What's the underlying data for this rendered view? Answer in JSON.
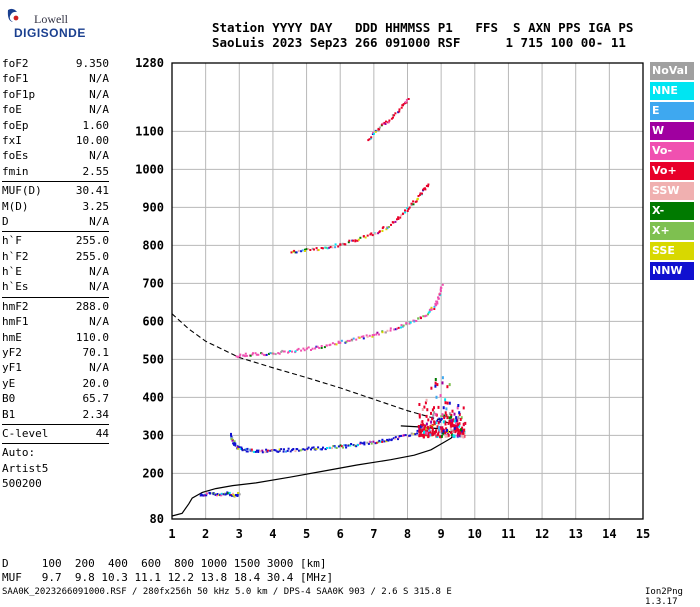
{
  "logo": {
    "line1": "Lowell",
    "line2": "DIGISONDE"
  },
  "header": {
    "line1": "Station YYYY DAY   DDD HHMMSS P1   FFS  S AXN PPS IGA PS",
    "line2": "SaoLuis 2023 Sep23 266 091000 RSF      1 715 100 00- 11"
  },
  "params_groups": [
    [
      [
        "foF2",
        "9.350"
      ],
      [
        "foF1",
        "N/A"
      ],
      [
        "foF1p",
        "N/A"
      ],
      [
        "foE",
        "N/A"
      ],
      [
        "foEp",
        "1.60"
      ],
      [
        "fxI",
        "10.00"
      ],
      [
        "foEs",
        "N/A"
      ],
      [
        "fmin",
        "2.55"
      ]
    ],
    [
      [
        "MUF(D)",
        "30.41"
      ],
      [
        "M(D)",
        "3.25"
      ],
      [
        "D",
        "N/A"
      ]
    ],
    [
      [
        "h`F",
        "255.0"
      ],
      [
        "h`F2",
        "255.0"
      ],
      [
        "h`E",
        "N/A"
      ],
      [
        "h`Es",
        "N/A"
      ]
    ],
    [
      [
        "hmF2",
        "288.0"
      ],
      [
        "hmF1",
        "N/A"
      ],
      [
        "hmE",
        "110.0"
      ],
      [
        "yF2",
        "70.1"
      ],
      [
        "yF1",
        "N/A"
      ],
      [
        "yE",
        "20.0"
      ],
      [
        "B0",
        "65.7"
      ],
      [
        "B1",
        "2.34"
      ]
    ],
    [
      [
        "C-level",
        "44"
      ]
    ]
  ],
  "autoscaling": {
    "line1": "Auto:",
    "line2": "Artist5",
    "line3": "500200"
  },
  "legend": [
    {
      "label": "NoVal",
      "color": "#a0a0a0"
    },
    {
      "label": "NNE",
      "color": "#00e5f2"
    },
    {
      "label": "E",
      "color": "#3ea8f0"
    },
    {
      "label": "W",
      "color": "#a000a0"
    },
    {
      "label": "Vo-",
      "color": "#f050b0"
    },
    {
      "label": "Vo+",
      "color": "#e8002a"
    },
    {
      "label": "SSW",
      "color": "#f0b0b0"
    },
    {
      "label": "X-",
      "color": "#007a00"
    },
    {
      "label": "X+",
      "color": "#7ec050"
    },
    {
      "label": "SSE",
      "color": "#d8d800"
    },
    {
      "label": "NNW",
      "color": "#1010d0"
    }
  ],
  "footer": {
    "d_row": "D     100  200  400  600  800 1000 1500 3000 [km]",
    "muf_row": "MUF   9.7  9.8 10.3 11.1 12.2 13.8 18.4 30.4 [MHz]",
    "file_line": "SAA0K_2023266091000.RSF / 280fx256h 50 kHz 5.0 km / DPS-4 SAA0K 903 / 2.6 S 315.8 E",
    "version": "Ion2Png 1.3.17"
  },
  "chart_data": {
    "type": "scatter",
    "xlim": [
      1,
      15
    ],
    "ylim": [
      80,
      1280
    ],
    "xticks": [
      1,
      2,
      3,
      4,
      5,
      6,
      7,
      8,
      9,
      10,
      11,
      12,
      13,
      14,
      15
    ],
    "yticks": [
      80,
      200,
      300,
      400,
      500,
      600,
      700,
      800,
      900,
      1000,
      1100,
      1280
    ],
    "grid": true,
    "profile_solid": [
      [
        1.0,
        88
      ],
      [
        1.3,
        95
      ],
      [
        1.5,
        120
      ],
      [
        1.6,
        135
      ],
      [
        1.9,
        150
      ],
      [
        2.3,
        160
      ],
      [
        2.8,
        168
      ],
      [
        3.5,
        175
      ],
      [
        4.5,
        190
      ],
      [
        5.5,
        206
      ],
      [
        6.5,
        222
      ],
      [
        7.5,
        236
      ],
      [
        8.2,
        248
      ],
      [
        8.7,
        262
      ],
      [
        9.05,
        280
      ],
      [
        9.3,
        293
      ],
      [
        9.35,
        300
      ],
      [
        9.25,
        310
      ],
      [
        8.9,
        318
      ],
      [
        8.4,
        322
      ],
      [
        7.8,
        325
      ]
    ],
    "profile_dashed": [
      [
        1.0,
        620
      ],
      [
        1.5,
        580
      ],
      [
        2.0,
        548
      ],
      [
        3.0,
        505
      ],
      [
        4.0,
        478
      ],
      [
        5.0,
        452
      ],
      [
        6.0,
        425
      ],
      [
        7.0,
        395
      ],
      [
        8.0,
        365
      ],
      [
        9.0,
        340
      ],
      [
        9.3,
        330
      ]
    ],
    "traces": [
      {
        "name": "F2 first hop",
        "color": "#1010d0",
        "points": [
          [
            2.7,
            305
          ],
          [
            2.8,
            285
          ],
          [
            2.9,
            272
          ],
          [
            3.1,
            265
          ],
          [
            3.4,
            262
          ],
          [
            3.8,
            262
          ],
          [
            4.2,
            263
          ],
          [
            4.6,
            265
          ],
          [
            5.0,
            267
          ],
          [
            5.4,
            269
          ],
          [
            5.8,
            272
          ],
          [
            6.2,
            275
          ],
          [
            6.6,
            280
          ],
          [
            7.0,
            285
          ],
          [
            7.4,
            291
          ],
          [
            7.8,
            298
          ],
          [
            8.2,
            308
          ],
          [
            8.6,
            322
          ],
          [
            8.9,
            340
          ],
          [
            9.1,
            360
          ]
        ]
      },
      {
        "name": "F2 second hop",
        "color": "#f050b0",
        "points": [
          [
            2.9,
            512
          ],
          [
            3.3,
            515
          ],
          [
            3.8,
            518
          ],
          [
            4.3,
            522
          ],
          [
            4.8,
            527
          ],
          [
            5.3,
            534
          ],
          [
            5.8,
            543
          ],
          [
            6.3,
            553
          ],
          [
            6.8,
            563
          ],
          [
            7.3,
            575
          ],
          [
            7.8,
            590
          ],
          [
            8.2,
            605
          ],
          [
            8.6,
            625
          ],
          [
            8.8,
            645
          ],
          [
            8.9,
            665
          ],
          [
            9.0,
            700
          ]
        ]
      },
      {
        "name": "F2 third hop",
        "color": "#e8002a",
        "points": [
          [
            4.5,
            785
          ],
          [
            5.0,
            790
          ],
          [
            5.5,
            796
          ],
          [
            6.0,
            805
          ],
          [
            6.5,
            818
          ],
          [
            7.0,
            835
          ],
          [
            7.4,
            852
          ],
          [
            7.8,
            880
          ],
          [
            8.1,
            910
          ],
          [
            8.4,
            940
          ],
          [
            8.6,
            965
          ]
        ]
      },
      {
        "name": "Es trace",
        "color": "#1010d0",
        "points": [
          [
            1.8,
            147
          ],
          [
            2.1,
            150
          ],
          [
            2.4,
            148
          ],
          [
            2.6,
            150
          ],
          [
            2.8,
            145
          ],
          [
            3.0,
            148
          ]
        ]
      },
      {
        "name": "high echoes",
        "color": "#e8002a",
        "points": [
          [
            6.8,
            1080
          ],
          [
            7.1,
            1110
          ],
          [
            7.4,
            1130
          ],
          [
            7.8,
            1165
          ],
          [
            8.0,
            1190
          ]
        ]
      }
    ],
    "spread_f": {
      "x": [
        8.3,
        9.7
      ],
      "y": [
        300,
        520
      ],
      "color": "#e8002a"
    }
  }
}
